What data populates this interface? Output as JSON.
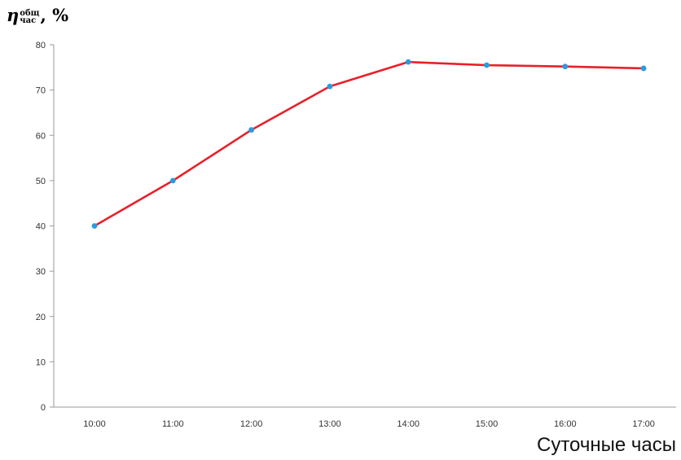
{
  "chart_data": {
    "type": "line",
    "ylabel": {
      "symbol": "η",
      "superscript": "общ",
      "subscript": "час",
      "unit": ", %"
    },
    "xlabel": "Суточные часы",
    "categories": [
      "10:00",
      "11:00",
      "12:00",
      "13:00",
      "14:00",
      "15:00",
      "16:00",
      "17:00"
    ],
    "series": [
      {
        "values": [
          40,
          50,
          61.2,
          70.8,
          76.2,
          75.5,
          75.2,
          74.8
        ]
      }
    ],
    "ylim": [
      0,
      80
    ],
    "yticks": [
      0,
      10,
      20,
      30,
      40,
      50,
      60,
      70,
      80
    ],
    "grid": false,
    "legend": "none",
    "colors": {
      "line": "#e8202a",
      "marker": "#2b9be0",
      "axis": "#9a9a9a"
    }
  }
}
